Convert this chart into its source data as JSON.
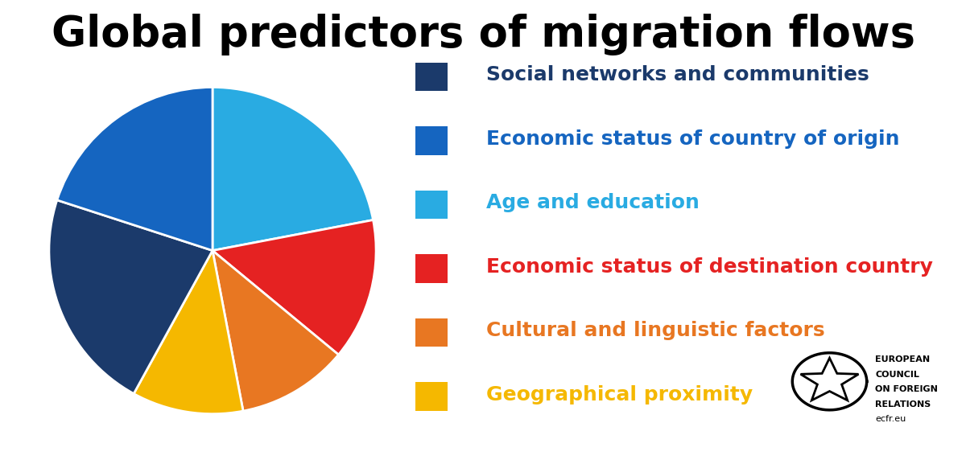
{
  "title": "Global predictors of migration flows",
  "title_fontsize": 38,
  "labels": [
    "Social networks and communities",
    "Economic status of country of origin",
    "Age and education",
    "Economic status of destination country",
    "Cultural and linguistic factors",
    "Geographical proximity"
  ],
  "sizes": [
    22,
    20,
    22,
    14,
    11,
    11
  ],
  "colors": [
    "#1b3a6b",
    "#1565c0",
    "#29abe2",
    "#e52222",
    "#e87722",
    "#f5b800"
  ],
  "legend_text_colors": [
    "#1b3a6b",
    "#1565c0",
    "#29abe2",
    "#e52222",
    "#e87722",
    "#f5b800"
  ],
  "startangle": 90,
  "background_color": "#ffffff",
  "ecfr_text": [
    "EUROPEAN",
    "COUNCIL",
    "ON FOREIGN",
    "RELATIONS",
    "ecfr.eu"
  ]
}
